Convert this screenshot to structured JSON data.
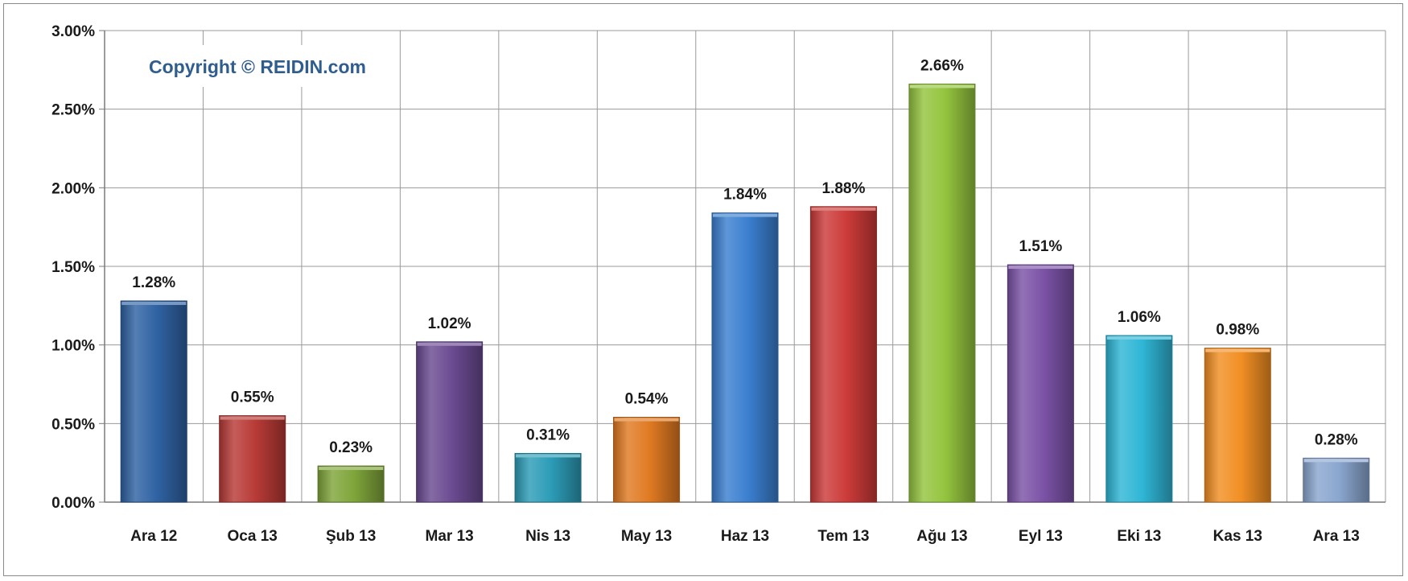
{
  "chart_data": {
    "type": "bar",
    "categories": [
      "Ara 12",
      "Oca 13",
      "Şub 13",
      "Mar 13",
      "Nis 13",
      "May 13",
      "Haz 13",
      "Tem 13",
      "Ağu 13",
      "Eyl 13",
      "Eki 13",
      "Kas 13",
      "Ara 13"
    ],
    "values": [
      1.28,
      0.55,
      0.23,
      1.02,
      0.31,
      0.54,
      1.84,
      1.88,
      2.66,
      1.51,
      1.06,
      0.98,
      0.28
    ],
    "data_labels": [
      "1.28%",
      "0.55%",
      "0.23%",
      "1.02%",
      "0.31%",
      "0.54%",
      "1.84%",
      "1.88%",
      "2.66%",
      "1.51%",
      "1.06%",
      "0.98%",
      "0.28%"
    ],
    "ylim": [
      0,
      3.0
    ],
    "yticks": [
      0,
      0.5,
      1.0,
      1.5,
      2.0,
      2.5,
      3.0
    ],
    "ytick_labels": [
      "0.00%",
      "0.50%",
      "1.00%",
      "1.50%",
      "2.00%",
      "2.50%",
      "3.00%"
    ],
    "grid": true,
    "bar_colors": [
      "#2f62a3",
      "#b83a36",
      "#7fa53a",
      "#6a4a91",
      "#2c9cb7",
      "#e07a22",
      "#3b7fd0",
      "#cc3b39",
      "#94c43e",
      "#7b52a6",
      "#2fb6d6",
      "#f28f24",
      "#8aa6cf"
    ],
    "title": "",
    "xlabel": "",
    "ylabel": ""
  },
  "annotation": {
    "copyright": "Copyright © REIDIN.com"
  }
}
